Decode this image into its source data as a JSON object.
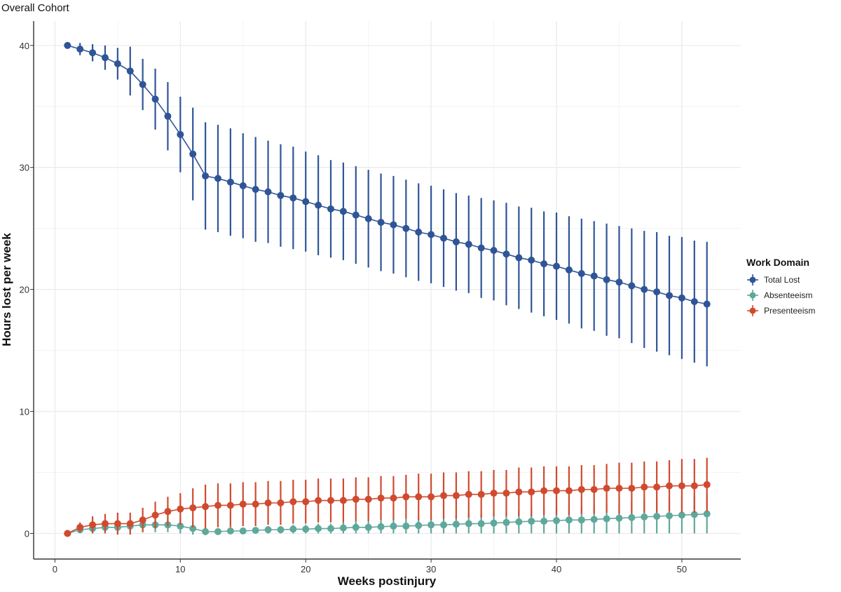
{
  "chart_data": {
    "type": "line",
    "title": "Overall Cohort",
    "xlabel": "Weeks postinjury",
    "ylabel": "Hours lost per week",
    "xlim": [
      -1.7,
      54.7
    ],
    "ylim": [
      -2.1,
      42
    ],
    "xticks": [
      0,
      10,
      20,
      30,
      40,
      50
    ],
    "yticks": [
      0,
      10,
      20,
      30,
      40
    ],
    "grid": true,
    "legend": {
      "title": "Work Domain",
      "placement": "right"
    },
    "x": [
      1,
      2,
      3,
      4,
      5,
      6,
      7,
      8,
      9,
      10,
      11,
      12,
      13,
      14,
      15,
      16,
      17,
      18,
      19,
      20,
      21,
      22,
      23,
      24,
      25,
      26,
      27,
      28,
      29,
      30,
      31,
      32,
      33,
      34,
      35,
      36,
      37,
      38,
      39,
      40,
      41,
      42,
      43,
      44,
      45,
      46,
      47,
      48,
      49,
      50,
      51,
      52
    ],
    "series": [
      {
        "name": "Total Lost",
        "color": "#2f5597",
        "values": [
          40,
          39.7,
          39.4,
          39.0,
          38.5,
          37.9,
          36.8,
          35.6,
          34.2,
          32.7,
          31.1,
          29.3,
          29.1,
          28.8,
          28.5,
          28.2,
          28.0,
          27.7,
          27.5,
          27.2,
          26.9,
          26.6,
          26.4,
          26.1,
          25.8,
          25.5,
          25.3,
          25.0,
          24.7,
          24.5,
          24.2,
          23.9,
          23.7,
          23.4,
          23.2,
          22.9,
          22.6,
          22.4,
          22.1,
          21.9,
          21.6,
          21.3,
          21.1,
          20.8,
          20.6,
          20.3,
          20.0,
          19.8,
          19.5,
          19.3,
          19.0,
          18.8
        ],
        "ci_halfwidth": [
          0,
          0.5,
          0.7,
          1.0,
          1.3,
          2.0,
          2.1,
          2.5,
          2.8,
          3.1,
          3.8,
          4.4,
          4.4,
          4.4,
          4.3,
          4.3,
          4.2,
          4.2,
          4.2,
          4.1,
          4.1,
          4.0,
          4.0,
          4.0,
          4.0,
          4.0,
          4.0,
          4.0,
          4.0,
          4.0,
          4.0,
          4.0,
          4.0,
          4.1,
          4.1,
          4.2,
          4.2,
          4.3,
          4.3,
          4.4,
          4.4,
          4.5,
          4.5,
          4.6,
          4.6,
          4.7,
          4.8,
          4.9,
          4.9,
          5.0,
          5.0,
          5.1
        ]
      },
      {
        "name": "Absenteeism",
        "color": "#5fa89b",
        "values": [
          0,
          0.3,
          0.4,
          0.5,
          0.5,
          0.6,
          0.7,
          0.7,
          0.7,
          0.6,
          0.4,
          0.15,
          0.15,
          0.2,
          0.2,
          0.25,
          0.3,
          0.3,
          0.35,
          0.35,
          0.4,
          0.4,
          0.45,
          0.5,
          0.5,
          0.55,
          0.6,
          0.6,
          0.65,
          0.7,
          0.7,
          0.75,
          0.8,
          0.8,
          0.85,
          0.9,
          0.95,
          1.0,
          1.0,
          1.05,
          1.1,
          1.1,
          1.15,
          1.2,
          1.25,
          1.3,
          1.35,
          1.4,
          1.45,
          1.5,
          1.55,
          1.6
        ],
        "ci_halfwidth": [
          0,
          0.2,
          0.3,
          0.4,
          0.5,
          0.5,
          0.6,
          0.6,
          0.6,
          0.6,
          0.5,
          0.3,
          0.2,
          0.2,
          0.2,
          0.25,
          0.3,
          0.3,
          0.35,
          0.35,
          0.4,
          0.4,
          0.45,
          0.5,
          0.5,
          0.55,
          0.6,
          0.6,
          0.65,
          0.7,
          0.7,
          0.75,
          0.8,
          0.8,
          0.85,
          0.9,
          0.95,
          1.0,
          1.0,
          1.05,
          1.1,
          1.1,
          1.15,
          1.2,
          1.25,
          1.3,
          1.35,
          1.4,
          1.45,
          1.5,
          1.55,
          1.6
        ]
      },
      {
        "name": "Presenteeism",
        "color": "#d04a2f",
        "values": [
          0,
          0.5,
          0.7,
          0.8,
          0.8,
          0.8,
          1.1,
          1.5,
          1.8,
          2.0,
          2.1,
          2.2,
          2.3,
          2.3,
          2.4,
          2.4,
          2.5,
          2.5,
          2.6,
          2.6,
          2.7,
          2.7,
          2.7,
          2.8,
          2.8,
          2.9,
          2.9,
          3.0,
          3.0,
          3.0,
          3.1,
          3.1,
          3.2,
          3.2,
          3.3,
          3.3,
          3.4,
          3.4,
          3.5,
          3.5,
          3.5,
          3.6,
          3.6,
          3.7,
          3.7,
          3.7,
          3.8,
          3.8,
          3.9,
          3.9,
          3.9,
          4.0
        ],
        "ci_halfwidth": [
          0,
          0.4,
          0.7,
          0.8,
          0.9,
          0.9,
          1.0,
          1.1,
          1.2,
          1.3,
          1.6,
          1.8,
          1.8,
          1.8,
          1.8,
          1.8,
          1.8,
          1.8,
          1.8,
          1.8,
          1.8,
          1.8,
          1.8,
          1.8,
          1.8,
          1.8,
          1.8,
          1.8,
          1.9,
          1.9,
          1.9,
          1.9,
          1.9,
          1.9,
          1.9,
          1.9,
          2.0,
          2.0,
          2.0,
          2.0,
          2.0,
          2.0,
          2.0,
          2.0,
          2.1,
          2.1,
          2.1,
          2.1,
          2.1,
          2.2,
          2.2,
          2.2
        ]
      }
    ]
  }
}
